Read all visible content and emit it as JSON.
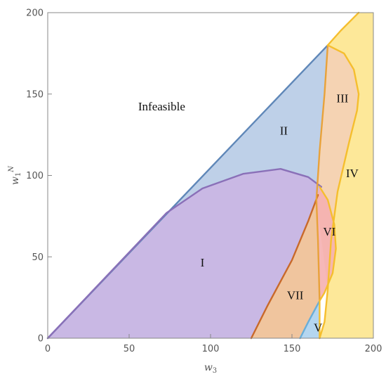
{
  "chart_data": {
    "type": "area",
    "title": "",
    "xlabel": "w3",
    "ylabel": "w1N",
    "xlim": [
      0,
      200
    ],
    "ylim": [
      0,
      200
    ],
    "x_ticks": [
      0,
      50,
      100,
      150,
      200
    ],
    "y_ticks": [
      0,
      50,
      100,
      150,
      200
    ],
    "x_tick_labels": [
      "0",
      "50",
      "100",
      "150",
      "200"
    ],
    "y_tick_labels": [
      "0",
      "50",
      "100",
      "150",
      "200"
    ],
    "grid": false,
    "colors": {
      "purple_fill": "#c9b6e4",
      "purple_line": "#8a70b8",
      "blue_fill": "#b7cbe6",
      "blue_line": "#5f87b8",
      "yellow_fill": "#fde68e",
      "yellow_line": "#f5be2e",
      "peach_fill": "#f2c49a",
      "brown_line": "#c8692a",
      "orange_line": "#e8a23a",
      "pink_fill": "#f5b0b0",
      "light_blue_fill": "#b3d6f0",
      "light_blue_line": "#6aaed8"
    },
    "boundaries": {
      "feasibility_line": [
        [
          0,
          0
        ],
        [
          172,
          180
        ]
      ],
      "purple_curve": [
        [
          0,
          0
        ],
        [
          73,
          77
        ],
        [
          95,
          92
        ],
        [
          120,
          101
        ],
        [
          143,
          104
        ],
        [
          160,
          99
        ],
        [
          168,
          93
        ]
      ],
      "brown_curve": [
        [
          125,
          0
        ],
        [
          135,
          20
        ],
        [
          150,
          48
        ],
        [
          160,
          72
        ],
        [
          166,
          88
        ]
      ],
      "orange_curve": [
        [
          167,
          23
        ],
        [
          166,
          60
        ],
        [
          165,
          85
        ],
        [
          167,
          115
        ],
        [
          170,
          150
        ],
        [
          172,
          180
        ]
      ],
      "yellow_outer_curve": [
        [
          167,
          0
        ],
        [
          170,
          10
        ],
        [
          172,
          30
        ],
        [
          174,
          60
        ],
        [
          178,
          90
        ],
        [
          185,
          120
        ],
        [
          190,
          140
        ],
        [
          191,
          150
        ],
        [
          188,
          165
        ],
        [
          182,
          175
        ],
        [
          172,
          180
        ]
      ],
      "yellow_top_line": [
        [
          172,
          180
        ],
        [
          180,
          189
        ],
        [
          191,
          200
        ]
      ],
      "blue_v_line": [
        [
          155,
          0
        ],
        [
          160,
          10
        ],
        [
          167,
          23
        ]
      ],
      "vi_curve": [
        [
          167,
          93
        ],
        [
          172,
          85
        ],
        [
          176,
          70
        ],
        [
          177,
          55
        ],
        [
          175,
          40
        ],
        [
          170,
          28
        ],
        [
          167,
          23
        ]
      ]
    },
    "annotations": [
      {
        "text": "Infeasible",
        "x": 70,
        "y": 140
      },
      {
        "text": "I",
        "x": 95,
        "y": 44
      },
      {
        "text": "II",
        "x": 145,
        "y": 125
      },
      {
        "text": "III",
        "x": 181,
        "y": 145
      },
      {
        "text": "IV",
        "x": 187,
        "y": 99
      },
      {
        "text": "V",
        "x": 166,
        "y": 4
      },
      {
        "text": "VI",
        "x": 173,
        "y": 63
      },
      {
        "text": "VII",
        "x": 152,
        "y": 24
      }
    ]
  }
}
